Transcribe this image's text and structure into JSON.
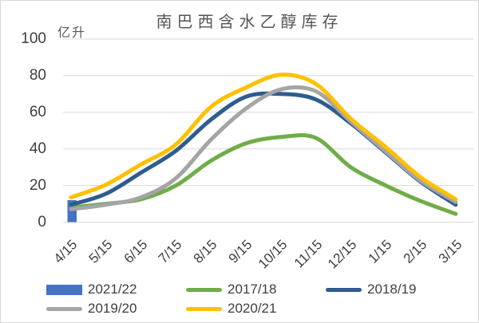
{
  "title": "南巴西含水乙醇库存",
  "y_unit_label": "亿升",
  "chart_data": {
    "type": "line",
    "title": "南巴西含水乙醇库存",
    "ylabel": "亿升",
    "categories": [
      "4/15",
      "5/15",
      "6/15",
      "7/15",
      "8/15",
      "9/15",
      "10/15",
      "11/15",
      "12/15",
      "1/15",
      "2/15",
      "3/15"
    ],
    "series": [
      {
        "name": "2021/22",
        "type": "bar",
        "color": "#4472C4",
        "values": [
          12,
          null,
          null,
          null,
          null,
          null,
          null,
          null,
          null,
          null,
          null,
          null
        ]
      },
      {
        "name": "2017/18",
        "type": "line",
        "color": "#70AD47",
        "values": [
          8,
          10,
          12.5,
          20,
          33.5,
          43,
          46.5,
          46,
          30,
          20,
          11.5,
          4.5
        ]
      },
      {
        "name": "2018/19",
        "type": "line",
        "color": "#2E5C8F",
        "values": [
          9.5,
          15.5,
          27,
          39,
          56,
          68.5,
          70,
          67,
          54,
          38,
          22,
          9.5
        ]
      },
      {
        "name": "2019/20",
        "type": "line",
        "color": "#A5A5A5",
        "values": [
          7,
          9.5,
          13.5,
          24,
          45,
          62,
          72.5,
          71.5,
          55,
          38.5,
          22.5,
          11
        ]
      },
      {
        "name": "2020/21",
        "type": "line",
        "color": "#FFC000",
        "values": [
          13.5,
          20.5,
          31.5,
          42.5,
          63,
          73.5,
          80.5,
          75.5,
          56.5,
          41,
          24.5,
          12.5
        ]
      }
    ],
    "ylim": [
      0,
      100
    ],
    "yticks": [
      0,
      20,
      40,
      60,
      80,
      100
    ],
    "grid": true,
    "gridline_color": "#d9d9d9",
    "legend_position": "bottom"
  },
  "legend": {
    "labels": [
      "2021/22",
      "2017/18",
      "2018/19",
      "2019/20",
      "2020/21"
    ]
  }
}
